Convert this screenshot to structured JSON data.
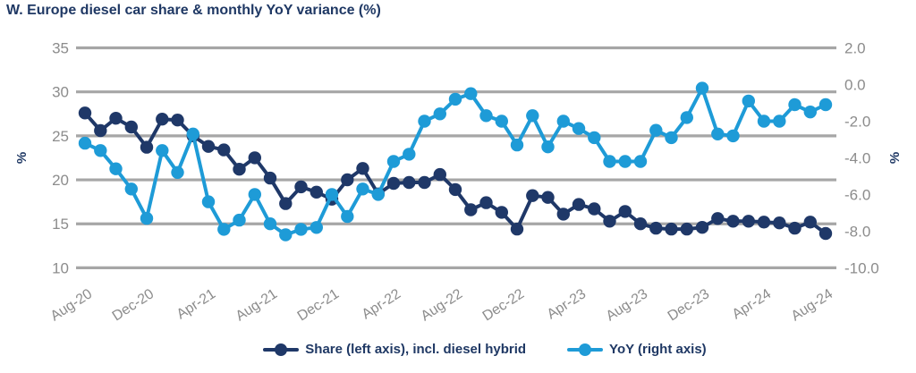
{
  "header": {
    "title": "W. Europe diesel car share & monthly YoY variance (%)"
  },
  "colors": {
    "navy": "#1f3868",
    "blue": "#1e9bd7",
    "grid": "#a6a6a6",
    "tick_text": "#8c8c8c"
  },
  "legend": [
    {
      "label": "Share (left axis), incl. diesel hybrid",
      "color": "navy"
    },
    {
      "label": "YoY (right axis)",
      "color": "blue"
    }
  ],
  "chart_data": {
    "type": "line",
    "title": "W. Europe diesel car share & monthly YoY variance (%)",
    "grid": "horizontal-only",
    "legend_position": "bottom",
    "categories": [
      "Aug-20",
      "Sep-20",
      "Oct-20",
      "Nov-20",
      "Dec-20",
      "Jan-21",
      "Feb-21",
      "Mar-21",
      "Apr-21",
      "May-21",
      "Jun-21",
      "Jul-21",
      "Aug-21",
      "Sep-21",
      "Oct-21",
      "Nov-21",
      "Dec-21",
      "Jan-22",
      "Feb-22",
      "Mar-22",
      "Apr-22",
      "May-22",
      "Jun-22",
      "Jul-22",
      "Aug-22",
      "Sep-22",
      "Oct-22",
      "Nov-22",
      "Dec-22",
      "Jan-23",
      "Feb-23",
      "Mar-23",
      "Apr-23",
      "May-23",
      "Jun-23",
      "Jul-23",
      "Aug-23",
      "Sep-23",
      "Oct-23",
      "Nov-23",
      "Dec-23",
      "Jan-24",
      "Feb-24",
      "Mar-24",
      "Apr-24",
      "May-24",
      "Jun-24",
      "Jul-24",
      "Aug-24"
    ],
    "x_tick_every": 4,
    "left_axis": {
      "label": "%",
      "min": 10,
      "max": 35,
      "tick_labels": [
        "35",
        "30",
        "25",
        "20",
        "15",
        "10"
      ]
    },
    "right_axis": {
      "label": "%",
      "min": -10,
      "max": 2,
      "tick_labels": [
        "2.0",
        "0.0",
        "-2.0",
        "-4.0",
        "-6.0",
        "-8.0",
        "-10.0"
      ]
    },
    "series": [
      {
        "name": "Share (left axis), incl. diesel hybrid",
        "axis": "left",
        "color": "navy",
        "values": [
          27.6,
          25.6,
          27.0,
          26.0,
          23.7,
          26.9,
          26.8,
          25.0,
          23.8,
          23.4,
          21.2,
          22.5,
          20.2,
          17.3,
          19.2,
          18.6,
          17.8,
          20.0,
          21.3,
          18.4,
          19.6,
          19.7,
          19.7,
          20.6,
          18.9,
          16.6,
          17.4,
          16.3,
          14.4,
          18.2,
          18.0,
          16.1,
          17.2,
          16.7,
          15.3,
          16.4,
          15.0,
          14.5,
          14.4,
          14.4,
          14.6,
          15.6,
          15.3,
          15.3,
          15.2,
          15.1,
          14.5,
          15.2,
          13.9
        ]
      },
      {
        "name": "YoY (right axis)",
        "axis": "right",
        "color": "blue",
        "values": [
          -3.2,
          -3.6,
          -4.6,
          -5.7,
          -7.3,
          -3.6,
          -4.8,
          -2.7,
          -6.4,
          -7.9,
          -7.4,
          -6.0,
          -7.6,
          -8.2,
          -7.9,
          -7.8,
          -6.0,
          -7.2,
          -5.7,
          -6.0,
          -4.2,
          -3.8,
          -2.0,
          -1.6,
          -0.8,
          -0.5,
          -1.7,
          -2.0,
          -3.3,
          -1.7,
          -3.4,
          -2.0,
          -2.4,
          -2.9,
          -4.2,
          -4.2,
          -4.2,
          -2.5,
          -2.9,
          -1.8,
          -0.2,
          -2.7,
          -2.8,
          -0.9,
          -2.0,
          -2.0,
          -1.1,
          -1.5,
          -1.1
        ]
      }
    ]
  }
}
